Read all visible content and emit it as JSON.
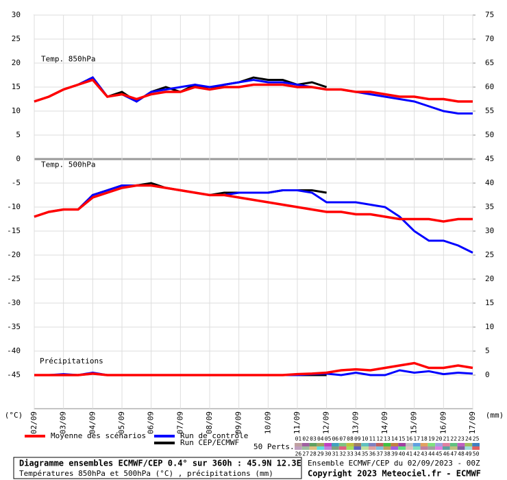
{
  "chart_data": {
    "type": "line",
    "x": [
      0,
      12,
      24,
      36,
      48,
      60,
      72,
      84,
      96,
      108,
      120,
      132,
      144,
      156,
      168,
      180,
      192,
      204,
      216,
      228,
      240,
      252,
      264,
      276,
      288,
      300,
      312,
      324,
      336,
      348,
      360
    ],
    "xlim": [
      0,
      360
    ],
    "xticks": [
      {
        "value": 0,
        "label": "02/09"
      },
      {
        "value": 24,
        "label": "03/09"
      },
      {
        "value": 48,
        "label": "04/09"
      },
      {
        "value": 72,
        "label": "05/09"
      },
      {
        "value": 96,
        "label": "06/09"
      },
      {
        "value": 120,
        "label": "07/09"
      },
      {
        "value": 144,
        "label": "08/09"
      },
      {
        "value": 168,
        "label": "09/09"
      },
      {
        "value": 192,
        "label": "10/09"
      },
      {
        "value": 216,
        "label": "11/09"
      },
      {
        "value": 240,
        "label": "12/09"
      },
      {
        "value": 264,
        "label": "13/09"
      },
      {
        "value": 288,
        "label": "14/09"
      },
      {
        "value": 312,
        "label": "15/09"
      },
      {
        "value": 336,
        "label": "16/09"
      },
      {
        "value": 360,
        "label": "17/09"
      }
    ],
    "ylim": [
      -52,
      30
    ],
    "yticks": [
      30,
      25,
      20,
      15,
      10,
      5,
      0,
      -5,
      -10,
      -15,
      -20,
      -25,
      -30,
      -35,
      -40,
      -45
    ],
    "y2lim": [
      -7,
      75
    ],
    "y2ticks": [
      75,
      70,
      65,
      60,
      55,
      50,
      45,
      40,
      35,
      30,
      25,
      20,
      15,
      10,
      5,
      0
    ],
    "ylabel": "(°C)",
    "y2label": "(mm)",
    "separator": 0,
    "legend": [
      {
        "name": "Moyenne des scénarios",
        "color": "#ff0000"
      },
      {
        "name": "Run de contrôle",
        "color": "#0000ff"
      },
      {
        "name": "Run CEP/ECMWF",
        "color": "#000000"
      }
    ],
    "panels": [
      {
        "label": "Temp. 850hPa",
        "axis": "y",
        "mean": [
          12,
          13,
          14.5,
          15.5,
          16.5,
          13,
          13.5,
          12.5,
          13.5,
          14,
          14,
          15,
          14.5,
          15,
          15,
          15.5,
          15.5,
          15.5,
          15,
          15,
          14.5,
          14.5,
          14,
          14,
          13.5,
          13,
          13,
          12.5,
          12.5,
          12,
          12
        ],
        "control": [
          12,
          13,
          14.5,
          15.5,
          17,
          13,
          13.5,
          12,
          14,
          14.5,
          15,
          15.5,
          15,
          15.5,
          16,
          16.5,
          16,
          16,
          15.5,
          15,
          14.5,
          14.5,
          14,
          13.5,
          13,
          12.5,
          12,
          11,
          10,
          9.5,
          9.5
        ],
        "cep": [
          12,
          13,
          14.5,
          15.5,
          17,
          13,
          14,
          12,
          14,
          15,
          14,
          15.5,
          14.5,
          15.5,
          16,
          17,
          16.5,
          16.5,
          15.5,
          16,
          15,
          null,
          null,
          null,
          null,
          null,
          null,
          null,
          null,
          null,
          null
        ]
      },
      {
        "label": "Temp. 500hPa",
        "axis": "y",
        "mean": [
          -12,
          -11,
          -10.5,
          -10.5,
          -8,
          -7,
          -6,
          -5.5,
          -5.5,
          -6,
          -6.5,
          -7,
          -7.5,
          -7.5,
          -8,
          -8.5,
          -9,
          -9.5,
          -10,
          -10.5,
          -11,
          -11,
          -11.5,
          -11.5,
          -12,
          -12.5,
          -12.5,
          -12.5,
          -13,
          -12.5,
          -12.5
        ],
        "control": [
          -12,
          -11,
          -10.5,
          -10.5,
          -7.5,
          -6.5,
          -5.5,
          -5.5,
          -5.5,
          -6,
          -6.5,
          -7,
          -7.5,
          -7.5,
          -7,
          -7,
          -7,
          -6.5,
          -6.5,
          -7,
          -9,
          -9,
          -9,
          -9.5,
          -10,
          -12,
          -15,
          -17,
          -17,
          -18,
          -19.5
        ],
        "cep": [
          -12,
          -11,
          -10.5,
          -10.5,
          -7.5,
          -6.5,
          -5.5,
          -5.5,
          -5,
          -6,
          -6.5,
          -7,
          -7.5,
          -7,
          -7,
          -7,
          -7,
          -6.5,
          -6.5,
          -6.5,
          -7,
          null,
          null,
          null,
          null,
          null,
          null,
          null,
          null,
          null,
          null
        ]
      },
      {
        "label": "Précipitations",
        "axis": "y2",
        "mean": [
          0,
          0,
          0,
          0,
          0.3,
          0,
          0,
          0,
          0,
          0,
          0,
          0,
          0,
          0,
          0,
          0,
          0,
          0,
          0.2,
          0.3,
          0.5,
          1,
          1.2,
          1,
          1.5,
          2,
          2.5,
          1.5,
          1.5,
          2,
          1.5
        ],
        "control": [
          0,
          0,
          0.2,
          0,
          0.5,
          0,
          0,
          0,
          0,
          0,
          0,
          0,
          0,
          0,
          0,
          0,
          0,
          0,
          0,
          0.2,
          0.3,
          0,
          0.5,
          0,
          0,
          1,
          0.5,
          0.8,
          0.2,
          0.5,
          0.3
        ],
        "cep": [
          0,
          0,
          0,
          0,
          0.3,
          0,
          0,
          0,
          0,
          0,
          0,
          0,
          0,
          0,
          0,
          0,
          0,
          0,
          0,
          0,
          0,
          null,
          null,
          null,
          null,
          null,
          null,
          null,
          null,
          null,
          null
        ]
      }
    ],
    "perts_label": "50 Perts.",
    "perts": [
      "01",
      "02",
      "03",
      "04",
      "05",
      "06",
      "07",
      "08",
      "09",
      "10",
      "11",
      "12",
      "13",
      "14",
      "15",
      "16",
      "17",
      "18",
      "19",
      "20",
      "21",
      "22",
      "23",
      "24",
      "25",
      "26",
      "27",
      "28",
      "29",
      "30",
      "31",
      "32",
      "33",
      "34",
      "35",
      "36",
      "37",
      "38",
      "39",
      "40",
      "41",
      "42",
      "43",
      "44",
      "45",
      "46",
      "47",
      "48",
      "49",
      "50"
    ],
    "pert_colors": [
      "#c0a0a0",
      "#a060a0",
      "#60a060",
      "#a0a060",
      "#c040c0",
      "#40a0c0",
      "#80c080",
      "#c0c040",
      "#a08060",
      "#60c0c0",
      "#8080c0",
      "#c06060",
      "#40c040",
      "#c08040",
      "#a040a0",
      "#c0c0c0",
      "#60a0e0",
      "#e0a060",
      "#80e080",
      "#a0a0e0",
      "#e080a0",
      "#60c080",
      "#c060c0",
      "#a0c060",
      "#4080c0",
      "#c0a0c0",
      "#a0c0a0",
      "#e0c080",
      "#60e0e0",
      "#c080e0",
      "#80a080",
      "#e06080",
      "#a0e060",
      "#6060c0",
      "#c0e0a0",
      "#e0a0a0",
      "#80c0e0",
      "#c0a060",
      "#a060e0",
      "#60e080",
      "#e0c0c0",
      "#80e0c0",
      "#c080a0",
      "#a0a0a0",
      "#e080e0",
      "#60a0a0",
      "#c0c080",
      "#8060a0",
      "#a0e0e0",
      "#e06060"
    ],
    "title": "Diagramme ensembles ECMWF/CEP 0.4° sur 360h : 45.9N 12.3E",
    "subtitle": "Températures 850hPa et 500hPa (°C) , précipitations (mm)",
    "run_info": "Ensemble ECMWF/CEP du 02/09/2023 - 00Z",
    "copyright": "Copyright 2023 Meteociel.fr - ECMWF"
  }
}
